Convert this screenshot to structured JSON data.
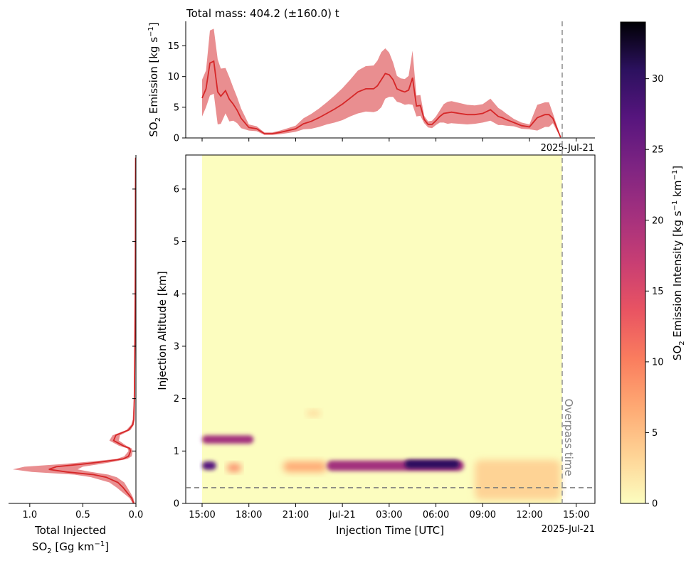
{
  "chart_data": [
    {
      "type": "area",
      "panel": "top",
      "title": "Total mass: 404.2 (±160.0) t",
      "ylabel": "SO2 Emission [kg s⁻¹]",
      "ylabel_parts": [
        "SO",
        "2",
        " Emission [kg s",
        "−1",
        "]"
      ],
      "date_label": "2025-Jul-21",
      "ylim": [
        0,
        19
      ],
      "yticks": [
        0,
        5,
        10,
        15
      ],
      "series_color": "#d62728",
      "band_color": "#e8888a",
      "x_hours": [
        0.0,
        0.25,
        0.5,
        0.75,
        1.0,
        1.2,
        1.5,
        1.75,
        2.0,
        2.25,
        2.5,
        3.0,
        3.5,
        4.0,
        4.5,
        5.0,
        5.5,
        6.0,
        6.5,
        7.0,
        7.5,
        8.0,
        8.5,
        9.0,
        9.5,
        10.0,
        10.5,
        11.0,
        11.25,
        11.5,
        11.75,
        12.0,
        12.25,
        12.5,
        12.75,
        13.0,
        13.25,
        13.5,
        13.75,
        14.0,
        14.25,
        14.5,
        14.75,
        15.0,
        15.25,
        15.5,
        15.75,
        16.0,
        16.5,
        17.0,
        17.5,
        18.0,
        18.5,
        19.0,
        19.25,
        19.5,
        20.0,
        20.5,
        21.0,
        21.5,
        22.0,
        22.25,
        22.5,
        23.0
      ],
      "emission": [
        6.5,
        8.0,
        12.2,
        12.5,
        7.5,
        6.8,
        7.7,
        6.3,
        5.5,
        4.5,
        3.2,
        1.7,
        1.5,
        0.7,
        0.7,
        0.9,
        1.2,
        1.5,
        2.3,
        2.7,
        3.3,
        4.0,
        4.7,
        5.5,
        6.5,
        7.5,
        8.0,
        8.0,
        8.5,
        9.5,
        10.5,
        10.3,
        9.5,
        8.0,
        7.7,
        7.5,
        7.8,
        9.8,
        5.2,
        5.3,
        3.0,
        2.2,
        2.2,
        2.8,
        3.5,
        4.0,
        4.1,
        4.2,
        4.0,
        3.8,
        3.8,
        4.0,
        4.6,
        3.5,
        3.3,
        3.0,
        2.5,
        2.0,
        1.8,
        3.3,
        3.8,
        3.8,
        3.2,
        0.1
      ],
      "upper": [
        9.5,
        11.0,
        17.5,
        17.8,
        12.8,
        11.3,
        11.4,
        9.9,
        8.2,
        6.6,
        4.8,
        2.2,
        1.9,
        0.9,
        0.9,
        1.2,
        1.6,
        2.0,
        3.2,
        3.9,
        4.8,
        5.8,
        6.9,
        8.1,
        9.5,
        11.0,
        11.7,
        11.8,
        12.6,
        14.0,
        14.6,
        13.9,
        12.3,
        10.1,
        9.7,
        9.6,
        10.1,
        14.2,
        6.9,
        7.0,
        3.6,
        2.7,
        2.8,
        3.5,
        4.5,
        5.5,
        5.9,
        6.0,
        5.7,
        5.4,
        5.3,
        5.5,
        6.4,
        4.9,
        4.5,
        4.0,
        3.1,
        2.5,
        2.2,
        5.4,
        5.8,
        5.8,
        4.0,
        0.2
      ],
      "lower": [
        3.5,
        5.0,
        6.9,
        7.2,
        2.2,
        2.3,
        4.0,
        2.7,
        2.8,
        2.4,
        1.6,
        1.2,
        1.1,
        0.5,
        0.5,
        0.6,
        0.8,
        1.0,
        1.4,
        1.5,
        1.8,
        2.2,
        2.5,
        2.9,
        3.5,
        4.0,
        4.3,
        4.2,
        4.4,
        5.0,
        6.4,
        6.7,
        6.7,
        5.9,
        5.7,
        5.4,
        5.5,
        5.4,
        3.5,
        3.6,
        2.4,
        1.7,
        1.6,
        2.1,
        2.5,
        2.5,
        2.3,
        2.4,
        2.3,
        2.2,
        2.3,
        2.5,
        2.8,
        2.1,
        2.1,
        2.0,
        1.9,
        1.5,
        1.4,
        1.2,
        1.8,
        1.8,
        2.4,
        0.0
      ]
    },
    {
      "type": "heatmap",
      "panel": "main",
      "xlabel": "Injection Time [UTC]",
      "ylabel": "Injection Altitude [km]",
      "x_tick_labels": [
        "15:00",
        "18:00",
        "21:00",
        "Jul-21",
        "03:00",
        "06:00",
        "09:00",
        "12:00",
        "15:00"
      ],
      "x_tick_hours": [
        0,
        3,
        6,
        9,
        12,
        15,
        18,
        21,
        24
      ],
      "date_label": "2025-Jul-21",
      "ylim": [
        0,
        6.65
      ],
      "yticks": [
        0,
        1,
        2,
        3,
        4,
        5,
        6
      ],
      "x_range_hours": [
        -1.05,
        25.2
      ],
      "data_range_hours": [
        0,
        23.1
      ],
      "dashed_altitude_km": 0.3,
      "overpass_hour": 23.1,
      "overpass_label": "Overpass time",
      "base_color": "#fcfdbf",
      "features": [
        {
          "t0": 0.0,
          "t1": 3.3,
          "alt": 1.22,
          "h": 0.08,
          "intensity": 22
        },
        {
          "t0": 0.0,
          "t1": 0.9,
          "alt": 0.72,
          "h": 0.08,
          "intensity": 26
        },
        {
          "t0": 1.6,
          "t1": 2.5,
          "alt": 0.68,
          "h": 0.07,
          "intensity": 10
        },
        {
          "t0": 5.2,
          "t1": 8.0,
          "alt": 0.7,
          "h": 0.1,
          "intensity": 8
        },
        {
          "t0": 8.0,
          "t1": 16.8,
          "alt": 0.72,
          "h": 0.1,
          "intensity": 22
        },
        {
          "t0": 13.0,
          "t1": 16.5,
          "alt": 0.75,
          "h": 0.08,
          "intensity": 32
        },
        {
          "t0": 17.5,
          "t1": 23.0,
          "alt": 0.45,
          "h": 0.38,
          "intensity": 5
        },
        {
          "t0": 6.7,
          "t1": 7.6,
          "alt": 1.72,
          "h": 0.05,
          "intensity": 3
        }
      ]
    },
    {
      "type": "line",
      "panel": "left",
      "xlabel_line1": "Total Injected",
      "xlabel_line2_parts": [
        "SO",
        "2",
        " [Gg km",
        "−1",
        "]"
      ],
      "x_tick_labels": [
        "1.0",
        "0.5",
        "0.0"
      ],
      "xlim": [
        1.2,
        0.0
      ],
      "alt_km": [
        0.0,
        0.1,
        0.2,
        0.3,
        0.4,
        0.5,
        0.55,
        0.6,
        0.65,
        0.7,
        0.75,
        0.8,
        0.85,
        0.9,
        0.95,
        1.0,
        1.05,
        1.1,
        1.2,
        1.3,
        1.4,
        1.5,
        1.6,
        2.0,
        3.0,
        4.0,
        5.0,
        6.0,
        6.6
      ],
      "injected": [
        0.02,
        0.04,
        0.08,
        0.12,
        0.17,
        0.28,
        0.4,
        0.65,
        0.82,
        0.75,
        0.5,
        0.3,
        0.12,
        0.07,
        0.06,
        0.05,
        0.06,
        0.12,
        0.21,
        0.19,
        0.07,
        0.03,
        0.02,
        0.015,
        0.01,
        0.007,
        0.005,
        0.004,
        0.003
      ],
      "upper": [
        0.03,
        0.06,
        0.12,
        0.18,
        0.25,
        0.42,
        0.58,
        0.98,
        1.16,
        1.05,
        0.7,
        0.42,
        0.18,
        0.11,
        0.09,
        0.07,
        0.08,
        0.16,
        0.25,
        0.22,
        0.09,
        0.045,
        0.03,
        0.02,
        0.014,
        0.01,
        0.008,
        0.006,
        0.005
      ],
      "lower": [
        0.01,
        0.025,
        0.05,
        0.08,
        0.11,
        0.18,
        0.26,
        0.42,
        0.55,
        0.5,
        0.34,
        0.2,
        0.08,
        0.04,
        0.035,
        0.03,
        0.04,
        0.09,
        0.16,
        0.15,
        0.05,
        0.02,
        0.012,
        0.009,
        0.006,
        0.004,
        0.003,
        0.002,
        0.002
      ]
    },
    {
      "type": "colorbar",
      "label_parts": [
        "SO",
        "2",
        " Emission Intensity [kg s",
        "−1",
        " km",
        "−1",
        "]"
      ],
      "vmin": 0,
      "vmax": 34,
      "ticks": [
        0,
        5,
        10,
        15,
        20,
        25,
        30
      ],
      "colormap": "magma_r"
    }
  ]
}
